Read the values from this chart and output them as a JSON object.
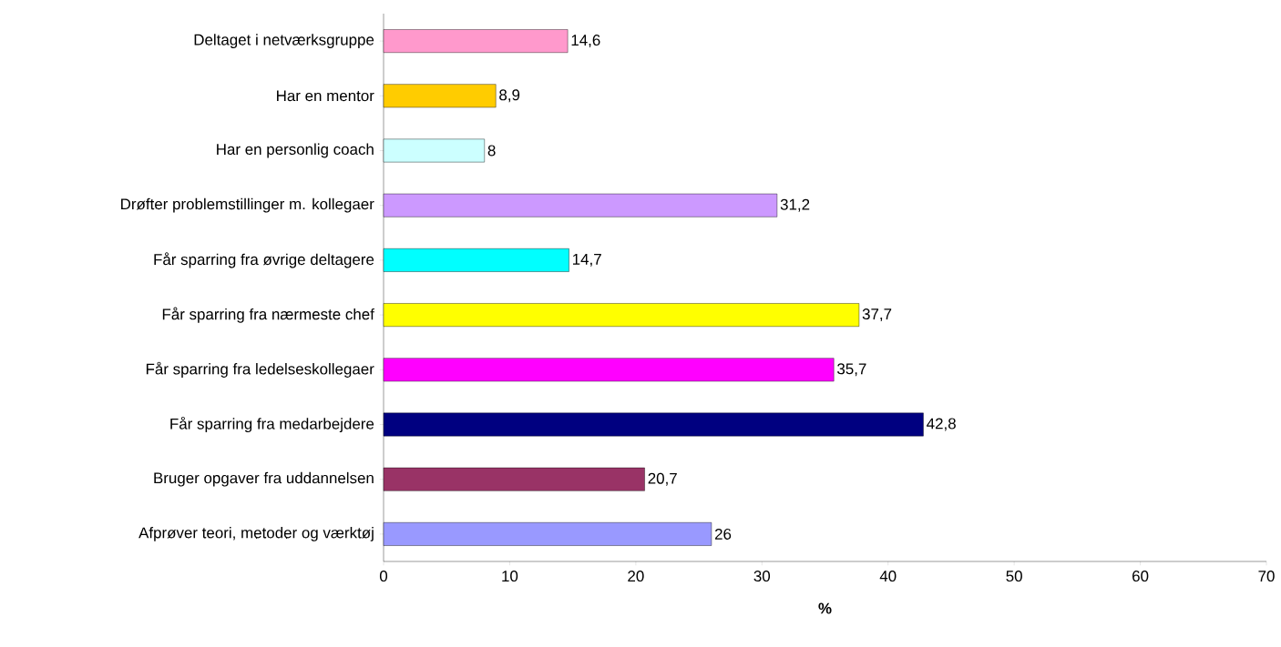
{
  "chart_data": {
    "type": "bar",
    "orientation": "horizontal",
    "categories": [
      "Deltaget i netværksgruppe",
      "Har en mentor",
      "Har en personlig coach",
      "Drøfter problemstillinger m. kollegaer",
      "Får sparring fra øvrige deltagere",
      "Får sparring fra nærmeste chef",
      "Får sparring fra ledelseskollegaer",
      "Får sparring fra medarbejdere",
      "Bruger opgaver fra uddannelsen",
      "Afprøver teori, metoder og værktøj"
    ],
    "values": [
      14.6,
      8.9,
      8,
      31.2,
      14.7,
      37.7,
      35.7,
      42.8,
      20.7,
      26
    ],
    "value_labels": [
      "14,6",
      "8,9",
      "8",
      "31,2",
      "14,7",
      "37,7",
      "35,7",
      "42,8",
      "20,7",
      "26"
    ],
    "colors": [
      "#ff99cc",
      "#ffcc00",
      "#ccffff",
      "#cc99ff",
      "#00ffff",
      "#ffff00",
      "#ff00ff",
      "#000080",
      "#993366",
      "#9999ff"
    ],
    "xlabel": "%",
    "xlim": [
      0,
      70
    ],
    "xticks": [
      0,
      10,
      20,
      30,
      40,
      50,
      60,
      70
    ],
    "grid": false
  }
}
